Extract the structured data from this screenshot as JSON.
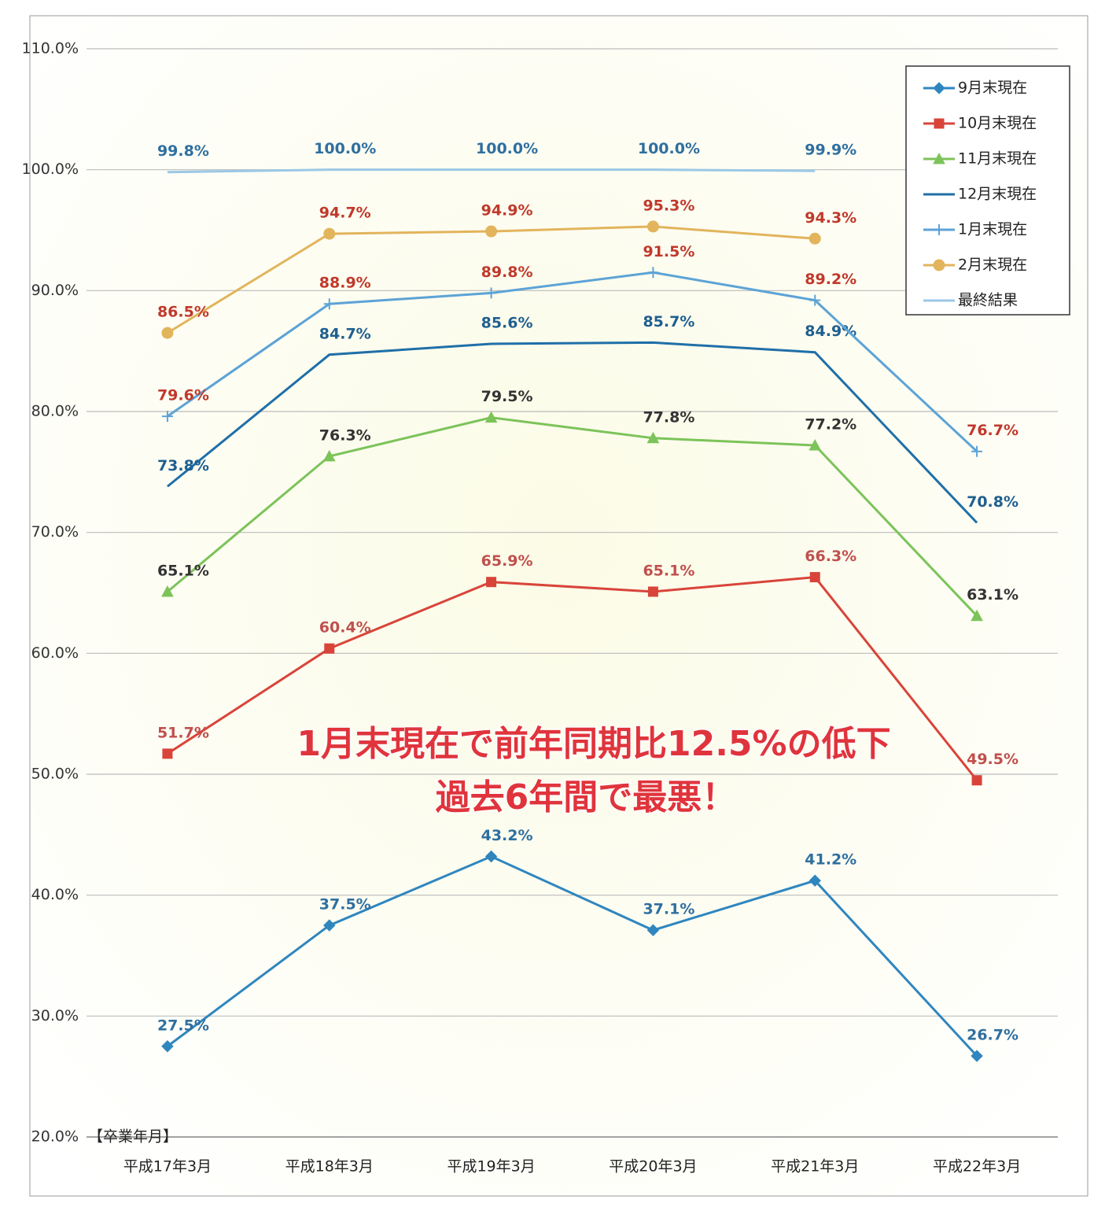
{
  "chart_data": {
    "type": "line",
    "x_label": "【卒業年月】",
    "categories": [
      "平成17年3月",
      "平成18年3月",
      "平成19年3月",
      "平成20年3月",
      "平成21年3月",
      "平成22年3月"
    ],
    "ylim": [
      20,
      110
    ],
    "yticks": [
      {
        "value": 20,
        "label": "20.0%"
      },
      {
        "value": 30,
        "label": "30.0%"
      },
      {
        "value": 40,
        "label": "40.0%"
      },
      {
        "value": 50,
        "label": "50.0%"
      },
      {
        "value": 60,
        "label": "60.0%"
      },
      {
        "value": 70,
        "label": "70.0%"
      },
      {
        "value": 80,
        "label": "80.0%"
      },
      {
        "value": 90,
        "label": "90.0%"
      },
      {
        "value": 100,
        "label": "100.0%"
      },
      {
        "value": 110,
        "label": "110.0%"
      }
    ],
    "grid": true,
    "legend": "upper right",
    "series": [
      {
        "name": "9月末現在",
        "color": "#2f86bf",
        "marker": "diamond",
        "label_color": "#2f6f9f",
        "values": [
          27.5,
          37.5,
          43.2,
          37.1,
          41.2,
          26.7
        ],
        "value_labels": [
          "27.5%",
          "37.5%",
          "43.2%",
          "37.1%",
          "41.2%",
          "26.7%"
        ]
      },
      {
        "name": "10月末現在",
        "color": "#d9443a",
        "marker": "square",
        "label_color": "#c0504d",
        "values": [
          51.7,
          60.4,
          65.9,
          65.1,
          66.3,
          49.5
        ],
        "value_labels": [
          "51.7%",
          "60.4%",
          "65.9%",
          "65.1%",
          "66.3%",
          "49.5%"
        ]
      },
      {
        "name": "11月末現在",
        "color": "#7cc35a",
        "marker": "triangle",
        "label_color": "#333333",
        "values": [
          65.1,
          76.3,
          79.5,
          77.8,
          77.2,
          63.1
        ],
        "value_labels": [
          "65.1%",
          "76.3%",
          "79.5%",
          "77.8%",
          "77.2%",
          "63.1%"
        ]
      },
      {
        "name": "12月末現在",
        "color": "#1f6fa8",
        "marker": "none",
        "label_color": "#1f5f8f",
        "values": [
          73.8,
          84.7,
          85.6,
          85.7,
          84.9,
          70.8
        ],
        "value_labels": [
          "73.8%",
          "84.7%",
          "85.6%",
          "85.7%",
          "84.9%",
          "70.8%"
        ]
      },
      {
        "name": "1月末現在",
        "color": "#5ca3d6",
        "marker": "plus",
        "label_color": "#c0392b",
        "values": [
          79.6,
          88.9,
          89.8,
          91.5,
          89.2,
          76.7
        ],
        "value_labels": [
          "79.6%",
          "88.9%",
          "89.8%",
          "91.5%",
          "89.2%",
          "76.7%"
        ]
      },
      {
        "name": "2月末現在",
        "color": "#e2b45c",
        "marker": "circle",
        "label_color": "#c0392b",
        "values": [
          86.5,
          94.7,
          94.9,
          95.3,
          94.3,
          null
        ],
        "value_labels": [
          "86.5%",
          "94.7%",
          "94.9%",
          "95.3%",
          "94.3%",
          null
        ]
      },
      {
        "name": "最終結果",
        "color": "#9cc8e6",
        "marker": "none",
        "label_color": "#2f6f9f",
        "values": [
          99.8,
          100.0,
          100.0,
          100.0,
          99.9,
          null
        ],
        "value_labels": [
          "99.8%",
          "100.0%",
          "100.0%",
          "100.0%",
          "99.9%",
          null
        ]
      }
    ],
    "annotations": [
      "1月末現在で前年同期比12.5%の低下",
      "過去6年間で最悪！"
    ]
  }
}
